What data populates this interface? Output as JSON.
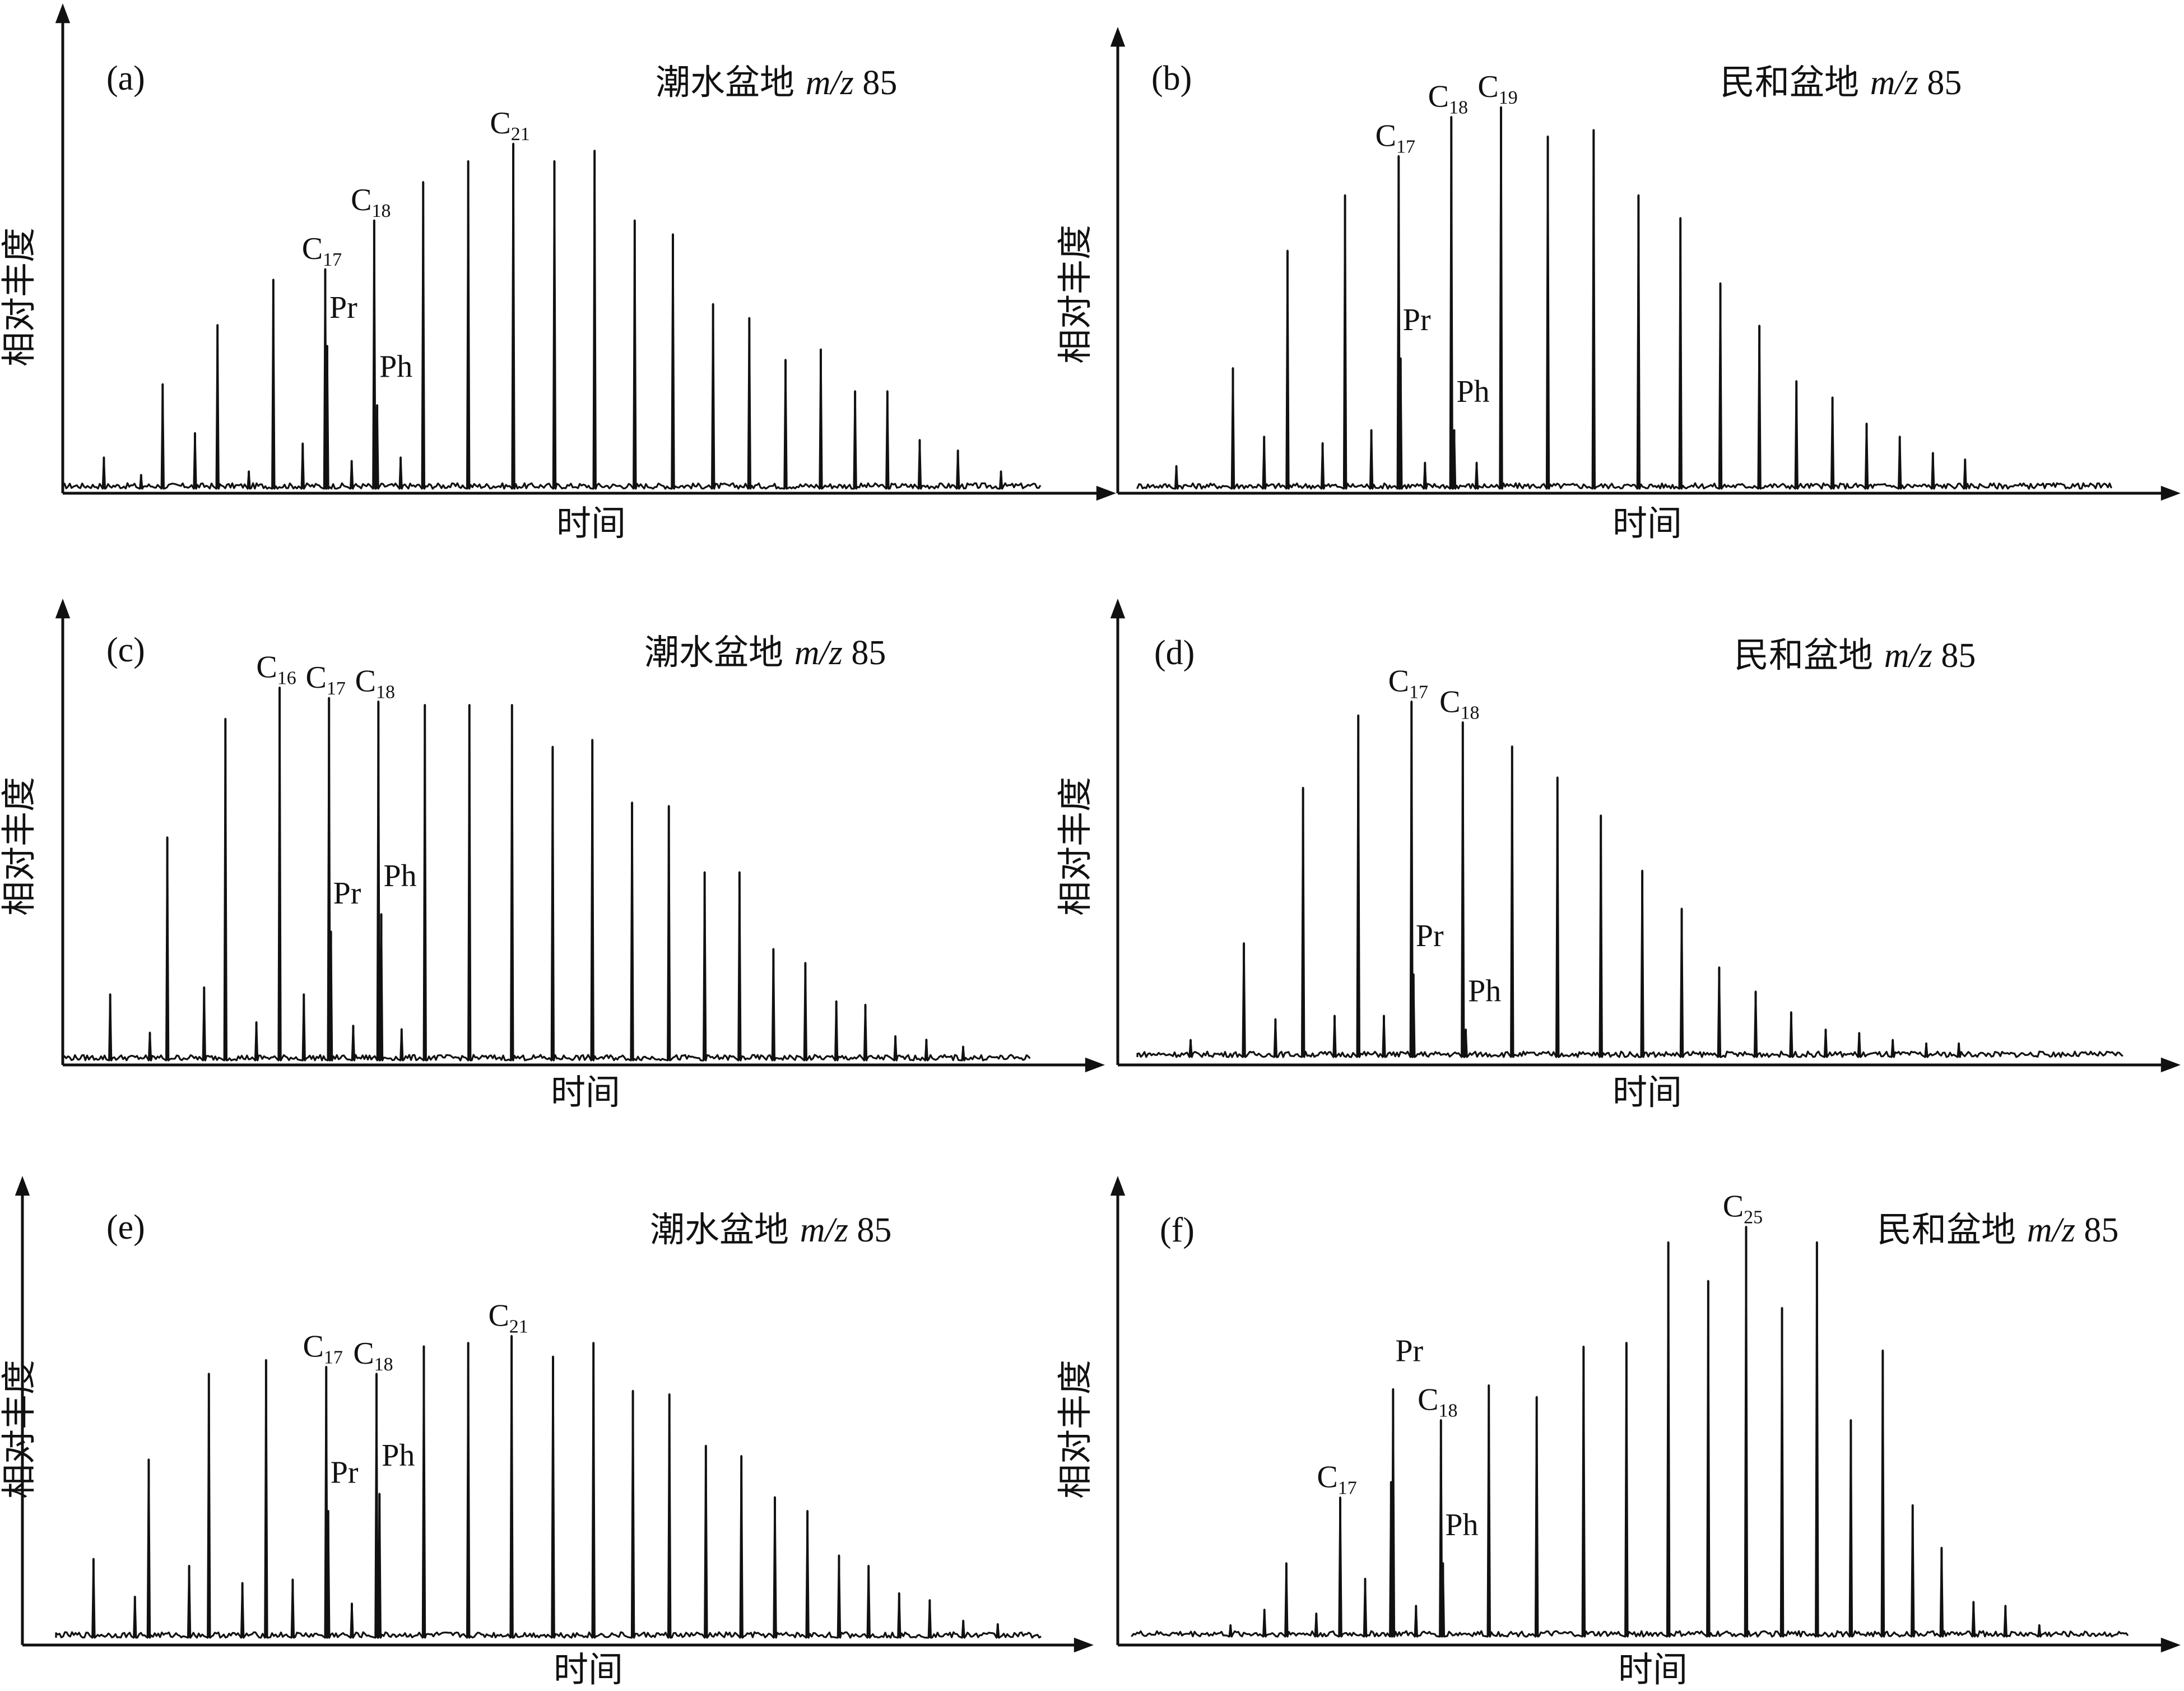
{
  "figure": {
    "x_axis_label": "时间",
    "y_axis_label": "相对丰度"
  },
  "chart_data": [
    {
      "type": "line",
      "panel_label": "(a)",
      "title": "潮水盆地 m/z 85",
      "title_parts": {
        "basin": "潮水盆地",
        "mz_italic": "m/z",
        "mz_value": "85"
      },
      "xlabel": "时间",
      "ylabel": "相对丰度",
      "xlim": [
        0,
        100
      ],
      "ylim": [
        0,
        100
      ],
      "peaks": [
        {
          "x": 4.2,
          "y": 9
        },
        {
          "x": 8.0,
          "y": 4
        },
        {
          "x": 10.2,
          "y": 30
        },
        {
          "x": 13.5,
          "y": 16
        },
        {
          "x": 15.8,
          "y": 47
        },
        {
          "x": 19.0,
          "y": 5
        },
        {
          "x": 21.5,
          "y": 60
        },
        {
          "x": 24.5,
          "y": 13
        },
        {
          "x": 26.8,
          "y": 63,
          "label": "C",
          "sub": "17"
        },
        {
          "x": 27.0,
          "y": 41,
          "label": "Pr"
        },
        {
          "x": 29.5,
          "y": 8
        },
        {
          "x": 31.8,
          "y": 77,
          "label": "C",
          "sub": "18"
        },
        {
          "x": 32.1,
          "y": 24,
          "label": "Ph"
        },
        {
          "x": 34.5,
          "y": 9
        },
        {
          "x": 36.8,
          "y": 88
        },
        {
          "x": 41.4,
          "y": 94
        },
        {
          "x": 46.0,
          "y": 99,
          "label": "C",
          "sub": "21"
        },
        {
          "x": 50.2,
          "y": 94
        },
        {
          "x": 54.3,
          "y": 97
        },
        {
          "x": 58.4,
          "y": 77
        },
        {
          "x": 62.3,
          "y": 73
        },
        {
          "x": 66.4,
          "y": 53
        },
        {
          "x": 70.1,
          "y": 49
        },
        {
          "x": 73.8,
          "y": 37
        },
        {
          "x": 77.4,
          "y": 40
        },
        {
          "x": 80.9,
          "y": 28
        },
        {
          "x": 84.2,
          "y": 28
        },
        {
          "x": 87.5,
          "y": 14
        },
        {
          "x": 91.4,
          "y": 11
        },
        {
          "x": 95.8,
          "y": 5
        }
      ]
    },
    {
      "type": "line",
      "panel_label": "(b)",
      "title": "民和盆地 m/z 85",
      "title_parts": {
        "basin": "民和盆地",
        "mz_italic": "m/z",
        "mz_value": "85"
      },
      "xlabel": "时间",
      "ylabel": "相对丰度",
      "xlim": [
        0,
        100
      ],
      "ylim": [
        0,
        100
      ],
      "peaks": [
        {
          "x": 4.0,
          "y": 7
        },
        {
          "x": 9.8,
          "y": 37
        },
        {
          "x": 13.0,
          "y": 16
        },
        {
          "x": 15.4,
          "y": 73
        },
        {
          "x": 19.0,
          "y": 14
        },
        {
          "x": 21.3,
          "y": 90
        },
        {
          "x": 24.0,
          "y": 18
        },
        {
          "x": 26.8,
          "y": 102,
          "label": "C",
          "sub": "17"
        },
        {
          "x": 27.0,
          "y": 40,
          "label": "Pr"
        },
        {
          "x": 29.5,
          "y": 8
        },
        {
          "x": 32.2,
          "y": 114,
          "label": "C",
          "sub": "18"
        },
        {
          "x": 32.5,
          "y": 18,
          "label": "Ph"
        },
        {
          "x": 34.8,
          "y": 8
        },
        {
          "x": 37.3,
          "y": 117,
          "label": "C",
          "sub": "19"
        },
        {
          "x": 42.1,
          "y": 108
        },
        {
          "x": 46.8,
          "y": 110
        },
        {
          "x": 51.4,
          "y": 90
        },
        {
          "x": 55.7,
          "y": 83
        },
        {
          "x": 59.8,
          "y": 63
        },
        {
          "x": 63.8,
          "y": 50
        },
        {
          "x": 67.6,
          "y": 33
        },
        {
          "x": 71.3,
          "y": 28
        },
        {
          "x": 74.8,
          "y": 20
        },
        {
          "x": 78.2,
          "y": 16
        },
        {
          "x": 81.6,
          "y": 11
        },
        {
          "x": 84.9,
          "y": 9
        }
      ]
    },
    {
      "type": "line",
      "panel_label": "(c)",
      "title": "潮水盆地 m/z 85",
      "title_parts": {
        "basin": "潮水盆地",
        "mz_italic": "m/z",
        "mz_value": "85"
      },
      "xlabel": "时间",
      "ylabel": "相对丰度",
      "xlim": [
        0,
        100
      ],
      "ylim": [
        0,
        100
      ],
      "peaks": [
        {
          "x": 4.9,
          "y": 19
        },
        {
          "x": 9.0,
          "y": 8
        },
        {
          "x": 10.8,
          "y": 64
        },
        {
          "x": 14.6,
          "y": 21
        },
        {
          "x": 16.8,
          "y": 98
        },
        {
          "x": 20.0,
          "y": 11
        },
        {
          "x": 22.4,
          "y": 107,
          "label": "C",
          "sub": "16"
        },
        {
          "x": 24.9,
          "y": 19
        },
        {
          "x": 27.5,
          "y": 104,
          "label": "C",
          "sub": "17"
        },
        {
          "x": 27.7,
          "y": 37,
          "label": "Pr"
        },
        {
          "x": 30.0,
          "y": 10
        },
        {
          "x": 32.6,
          "y": 103,
          "label": "C",
          "sub": "18"
        },
        {
          "x": 32.9,
          "y": 42,
          "label": "Ph"
        },
        {
          "x": 35.0,
          "y": 9
        },
        {
          "x": 37.4,
          "y": 102
        },
        {
          "x": 42.0,
          "y": 102
        },
        {
          "x": 46.4,
          "y": 102
        },
        {
          "x": 50.6,
          "y": 90
        },
        {
          "x": 54.7,
          "y": 92
        },
        {
          "x": 58.8,
          "y": 74
        },
        {
          "x": 62.6,
          "y": 73
        },
        {
          "x": 66.3,
          "y": 54
        },
        {
          "x": 69.9,
          "y": 54
        },
        {
          "x": 73.4,
          "y": 32
        },
        {
          "x": 76.7,
          "y": 28
        },
        {
          "x": 79.9,
          "y": 17
        },
        {
          "x": 82.9,
          "y": 16
        },
        {
          "x": 86.0,
          "y": 7
        },
        {
          "x": 89.2,
          "y": 6
        },
        {
          "x": 93.0,
          "y": 4
        }
      ]
    },
    {
      "type": "line",
      "panel_label": "(d)",
      "title": "民和盆地 m/z 85",
      "title_parts": {
        "basin": "民和盆地",
        "mz_italic": "m/z",
        "mz_value": "85"
      },
      "xlabel": "时间",
      "ylabel": "相对丰度",
      "xlim": [
        0,
        100
      ],
      "ylim": [
        0,
        100
      ],
      "peaks": [
        {
          "x": 5.4,
          "y": 5
        },
        {
          "x": 10.8,
          "y": 33
        },
        {
          "x": 14.0,
          "y": 11
        },
        {
          "x": 16.8,
          "y": 78
        },
        {
          "x": 20.0,
          "y": 12
        },
        {
          "x": 22.4,
          "y": 99
        },
        {
          "x": 25.0,
          "y": 12
        },
        {
          "x": 27.8,
          "y": 103,
          "label": "C",
          "sub": "17"
        },
        {
          "x": 28.0,
          "y": 24,
          "label": "Pr"
        },
        {
          "x": 33.0,
          "y": 97,
          "label": "C",
          "sub": "18"
        },
        {
          "x": 33.3,
          "y": 8,
          "label": "Ph"
        },
        {
          "x": 38.0,
          "y": 90
        },
        {
          "x": 42.6,
          "y": 81
        },
        {
          "x": 47.0,
          "y": 70
        },
        {
          "x": 51.2,
          "y": 54
        },
        {
          "x": 55.2,
          "y": 43
        },
        {
          "x": 59.0,
          "y": 26
        },
        {
          "x": 62.7,
          "y": 19
        },
        {
          "x": 66.3,
          "y": 13
        },
        {
          "x": 69.8,
          "y": 8
        },
        {
          "x": 73.2,
          "y": 7
        },
        {
          "x": 76.6,
          "y": 5
        },
        {
          "x": 80.0,
          "y": 4
        },
        {
          "x": 83.3,
          "y": 4
        }
      ]
    },
    {
      "type": "line",
      "panel_label": "(e)",
      "title": "潮水盆地 m/z 85",
      "title_parts": {
        "basin": "潮水盆地",
        "mz_italic": "m/z",
        "mz_value": "85"
      },
      "xlabel": "时间",
      "ylabel": "相对丰度",
      "xlim": [
        0,
        100
      ],
      "ylim": [
        0,
        100
      ],
      "peaks": [
        {
          "x": 3.8,
          "y": 23
        },
        {
          "x": 8.0,
          "y": 12
        },
        {
          "x": 9.4,
          "y": 52
        },
        {
          "x": 13.5,
          "y": 21
        },
        {
          "x": 15.5,
          "y": 77
        },
        {
          "x": 18.9,
          "y": 16
        },
        {
          "x": 21.3,
          "y": 81
        },
        {
          "x": 24.0,
          "y": 17
        },
        {
          "x": 27.4,
          "y": 79,
          "label": "C",
          "sub": "17"
        },
        {
          "x": 27.6,
          "y": 37,
          "label": "Pr"
        },
        {
          "x": 30.0,
          "y": 10
        },
        {
          "x": 32.5,
          "y": 77,
          "label": "C",
          "sub": "18"
        },
        {
          "x": 32.8,
          "y": 42,
          "label": "Ph"
        },
        {
          "x": 37.3,
          "y": 85
        },
        {
          "x": 41.8,
          "y": 86
        },
        {
          "x": 46.2,
          "y": 88,
          "label": "C",
          "sub": "21"
        },
        {
          "x": 50.4,
          "y": 82
        },
        {
          "x": 54.5,
          "y": 86
        },
        {
          "x": 58.5,
          "y": 72
        },
        {
          "x": 62.2,
          "y": 71
        },
        {
          "x": 65.9,
          "y": 56
        },
        {
          "x": 69.5,
          "y": 53
        },
        {
          "x": 72.9,
          "y": 41
        },
        {
          "x": 76.2,
          "y": 37
        },
        {
          "x": 79.4,
          "y": 24
        },
        {
          "x": 82.4,
          "y": 21
        },
        {
          "x": 85.5,
          "y": 13
        },
        {
          "x": 88.6,
          "y": 11
        },
        {
          "x": 92.0,
          "y": 5
        },
        {
          "x": 95.5,
          "y": 4
        }
      ]
    },
    {
      "type": "line",
      "panel_label": "(f)",
      "title": "民和盆地 m/z 85",
      "title_parts": {
        "basin": "民和盆地",
        "mz_italic": "m/z",
        "mz_value": "85"
      },
      "xlabel": "时间",
      "ylabel": "相对丰度",
      "xlim": [
        0,
        100
      ],
      "ylim": [
        0,
        100
      ],
      "peaks": [
        {
          "x": 9.9,
          "y": 3
        },
        {
          "x": 13.3,
          "y": 7
        },
        {
          "x": 15.5,
          "y": 19
        },
        {
          "x": 18.5,
          "y": 6
        },
        {
          "x": 20.9,
          "y": 36,
          "label": "C",
          "sub": "17"
        },
        {
          "x": 23.4,
          "y": 15
        },
        {
          "x": 26.0,
          "y": 40
        },
        {
          "x": 26.2,
          "y": 64,
          "label": "Pr"
        },
        {
          "x": 28.5,
          "y": 8
        },
        {
          "x": 31.0,
          "y": 56,
          "label": "C",
          "sub": "18"
        },
        {
          "x": 31.2,
          "y": 19,
          "label": "Ph"
        },
        {
          "x": 35.8,
          "y": 65
        },
        {
          "x": 40.6,
          "y": 62
        },
        {
          "x": 45.3,
          "y": 75
        },
        {
          "x": 49.6,
          "y": 76
        },
        {
          "x": 53.8,
          "y": 102
        },
        {
          "x": 57.8,
          "y": 92
        },
        {
          "x": 61.6,
          "y": 106,
          "label": "C",
          "sub": "25"
        },
        {
          "x": 65.2,
          "y": 85
        },
        {
          "x": 68.7,
          "y": 102
        },
        {
          "x": 72.1,
          "y": 56
        },
        {
          "x": 75.3,
          "y": 74
        },
        {
          "x": 78.3,
          "y": 34
        },
        {
          "x": 81.2,
          "y": 23
        },
        {
          "x": 84.4,
          "y": 9
        },
        {
          "x": 87.6,
          "y": 8
        },
        {
          "x": 91.0,
          "y": 3
        }
      ]
    }
  ]
}
